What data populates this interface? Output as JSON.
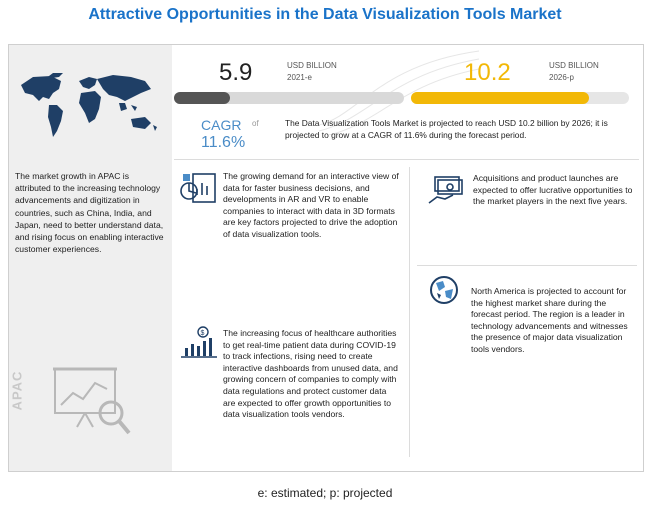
{
  "title": "Attractive Opportunities in the Data Visualization Tools Market",
  "left_panel": {
    "text": "The market growth in APAC is attributed to the increasing technology advancements and digitization in countries, such as China, India, and Japan, need to better understand data, and rising focus on enabling interactive customer experiences.",
    "region_label": "APAC"
  },
  "metrics": {
    "value_2021": "5.9",
    "unit_2021": "USD BILLION",
    "year_2021": "2021-e",
    "value_2026": "10.2",
    "unit_2026": "USD BILLION",
    "year_2026": "2026-p",
    "cagr_label": "CAGR",
    "cagr_of": "of",
    "cagr_value": "11.6%",
    "description": "The Data Visualization Tools Market is projected to reach USD 10.2 billion by 2026; it is projected to grow at a CAGR of 11.6% during the forecast period."
  },
  "factors": [
    {
      "icon": "report-icon",
      "text": "The growing demand for an interactive view of data for faster business decisions, and developments in AR and VR to enable companies to interact with data in 3D formats are key factors projected to drive the adoption of data visualization tools."
    },
    {
      "icon": "money-hand-icon",
      "text": "Acquisitions and product launches are expected to offer lucrative opportunities to the market players in the next five years."
    },
    {
      "icon": "globe-icon",
      "text": "North America is projected to account for the highest market share during the forecast period. The region is a leader in technology advancements and witnesses the presence of major data visualization tools vendors."
    },
    {
      "icon": "dollar-growth-icon",
      "text": "The increasing focus of healthcare authorities to get real-time patient data during COVID-19 to track infections, rising need to create interactive dashboards from unused data, and growing concern of companies to comply with data regulations and protect customer data are expected to offer growth opportunities to data visualization tools vendors."
    }
  ],
  "footer": "e: estimated; p: projected",
  "colors": {
    "title": "#1a73c9",
    "bar_dark": "#555555",
    "bar_accent": "#f2b807",
    "cagr": "#4a8cc7"
  }
}
